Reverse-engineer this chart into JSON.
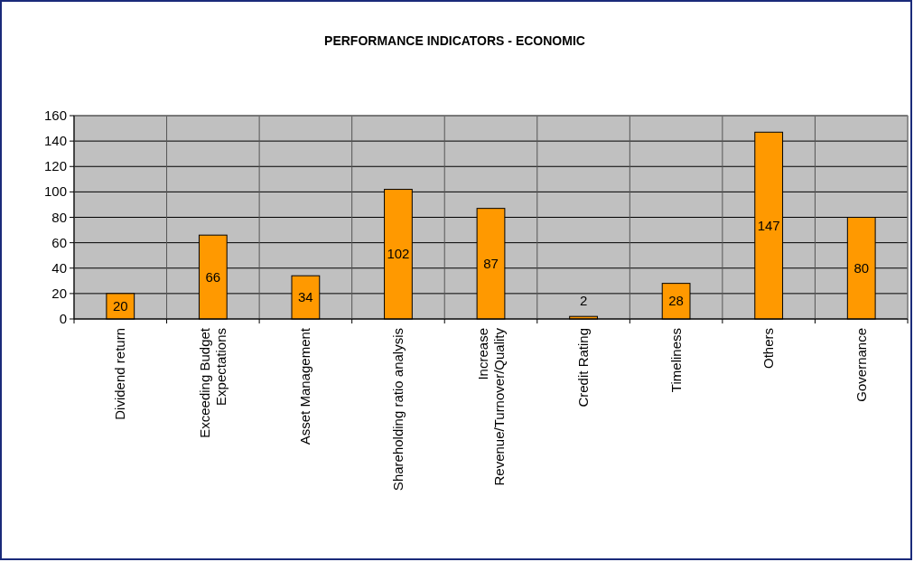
{
  "chart_data": {
    "type": "bar",
    "title": "PERFORMANCE INDICATORS - ECONOMIC",
    "categories": [
      "Dividend return",
      "Exceeding Budget Expectations",
      "Asset Management",
      "Shareholding ratio analysis",
      "Increase Revenue/Turnover/Quality",
      "Credit Rating",
      "Timeliness",
      "Others",
      "Governance"
    ],
    "values": [
      20,
      66,
      34,
      102,
      87,
      2,
      28,
      147,
      80
    ],
    "color": "#ff9900",
    "ylim": [
      0,
      160
    ],
    "yticks": [
      0,
      20,
      40,
      60,
      80,
      100,
      120,
      140,
      160
    ],
    "grid": true,
    "data_labels": true
  }
}
